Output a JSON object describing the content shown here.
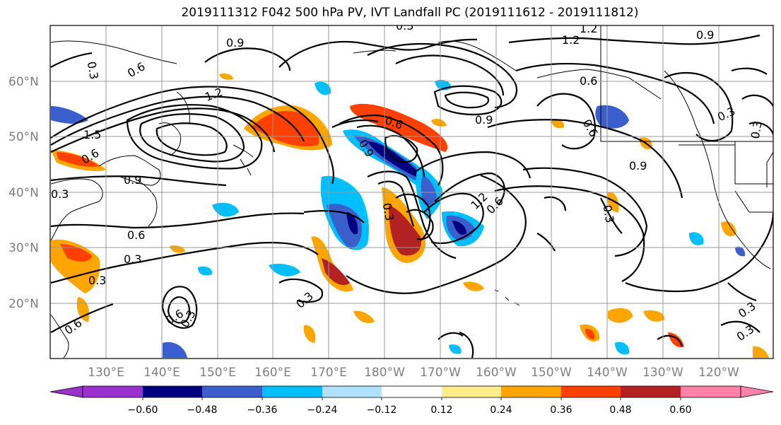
{
  "title": "2019111312 F042 500 hPa PV, IVT Landfall PC (2019111612 - 2019111812)",
  "lat_labels": [
    "60°N",
    "50°N",
    "40°N",
    "30°N",
    "20°N"
  ],
  "lon_labels": [
    "130°E",
    "140°E",
    "150°E",
    "160°E",
    "170°E",
    "180°W",
    "170°W",
    "160°W",
    "150°W",
    "140°W",
    "130°W",
    "120°W"
  ],
  "contour_labels": [
    "0.3",
    "0.6",
    "0.9",
    "1.2",
    "1.5",
    "0.9",
    "0.3",
    "1.2",
    "0.6",
    "0.9",
    "1.2",
    "0.6",
    "0.3",
    "0.3",
    "0.6",
    "0.3",
    "1.2",
    "0.6",
    "0.3",
    "0.9",
    "0.3",
    "0.6",
    "0.3",
    "0.6",
    "0.3",
    "0.3",
    "0.6",
    "0.3",
    "0.9",
    "0.3",
    "0.3",
    "0.6",
    "0.9"
  ],
  "colorbar": {
    "ticks": [
      "−0.60",
      "−0.48",
      "−0.36",
      "−0.24",
      "−0.12",
      "0.12",
      "0.24",
      "0.36",
      "0.48",
      "0.60"
    ],
    "colors": [
      "#9932cc",
      "#000080",
      "#3a5fcd",
      "#00bfff",
      "#b0e2ff",
      "#ffffff",
      "#ffec8b",
      "#ffa500",
      "#ff4000",
      "#b22222",
      "#ff82ab"
    ]
  }
}
